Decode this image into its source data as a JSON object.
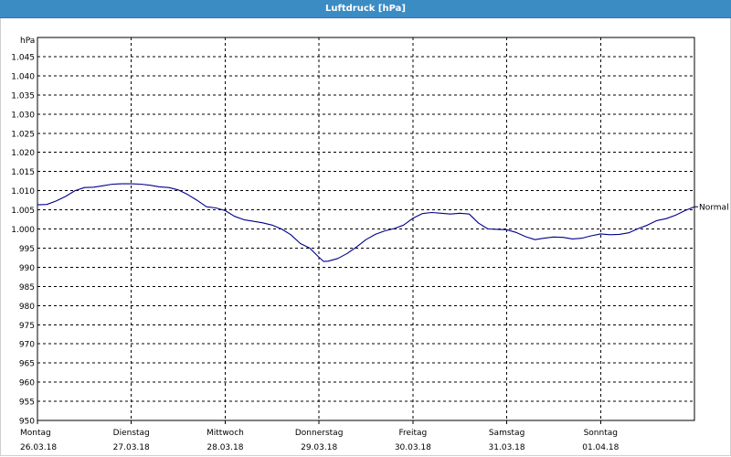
{
  "window": {
    "title": "Luftdruck [hPa]"
  },
  "chart_data": {
    "type": "line",
    "title": "Luftdruck [hPa]",
    "ylabel": "hPa",
    "ylim": [
      950,
      1050
    ],
    "yticks": [
      "1.045",
      "1.040",
      "1.035",
      "1.030",
      "1.025",
      "1.020",
      "1.015",
      "1.010",
      "1.005",
      "1.000",
      "995",
      "990",
      "985",
      "980",
      "975",
      "970",
      "965",
      "960",
      "955",
      "950"
    ],
    "ytick_values": [
      1045,
      1040,
      1035,
      1030,
      1025,
      1020,
      1015,
      1010,
      1005,
      1000,
      995,
      990,
      985,
      980,
      975,
      970,
      965,
      960,
      955,
      950
    ],
    "xlim": [
      0,
      7
    ],
    "x_ticks": [
      {
        "day": "Montag",
        "date": "26.03.18"
      },
      {
        "day": "Dienstag",
        "date": "27.03.18"
      },
      {
        "day": "Mittwoch",
        "date": "28.03.18"
      },
      {
        "day": "Donnerstag",
        "date": "29.03.18"
      },
      {
        "day": "Freitag",
        "date": "30.03.18"
      },
      {
        "day": "Samstag",
        "date": "31.03.18"
      },
      {
        "day": "Sonntag",
        "date": "01.04.18"
      }
    ],
    "grid": true,
    "reference_line": {
      "label": "Normal",
      "value": 1005.8
    },
    "series": [
      {
        "color": "#00008b",
        "points": [
          [
            0.0,
            1006.3
          ],
          [
            0.1,
            1006.4
          ],
          [
            0.2,
            1007.3
          ],
          [
            0.3,
            1008.5
          ],
          [
            0.4,
            1010.0
          ],
          [
            0.5,
            1010.8
          ],
          [
            0.6,
            1010.9
          ],
          [
            0.7,
            1011.3
          ],
          [
            0.8,
            1011.7
          ],
          [
            0.9,
            1011.8
          ],
          [
            1.0,
            1011.8
          ],
          [
            1.1,
            1011.7
          ],
          [
            1.2,
            1011.4
          ],
          [
            1.3,
            1011.0
          ],
          [
            1.4,
            1010.8
          ],
          [
            1.5,
            1010.2
          ],
          [
            1.6,
            1009.0
          ],
          [
            1.7,
            1007.5
          ],
          [
            1.8,
            1005.8
          ],
          [
            1.9,
            1005.5
          ],
          [
            2.0,
            1004.8
          ],
          [
            2.1,
            1003.3
          ],
          [
            2.2,
            1002.4
          ],
          [
            2.3,
            1002.0
          ],
          [
            2.4,
            1001.6
          ],
          [
            2.5,
            1001.0
          ],
          [
            2.6,
            1000.0
          ],
          [
            2.7,
            998.5
          ],
          [
            2.8,
            996.2
          ],
          [
            2.9,
            995.0
          ],
          [
            3.0,
            992.6
          ],
          [
            3.05,
            991.5
          ],
          [
            3.1,
            991.6
          ],
          [
            3.2,
            992.3
          ],
          [
            3.3,
            993.6
          ],
          [
            3.4,
            995.3
          ],
          [
            3.5,
            997.2
          ],
          [
            3.6,
            998.6
          ],
          [
            3.7,
            999.5
          ],
          [
            3.8,
            1000.1
          ],
          [
            3.9,
            1001.0
          ],
          [
            4.0,
            1002.8
          ],
          [
            4.1,
            1004.0
          ],
          [
            4.2,
            1004.3
          ],
          [
            4.3,
            1004.1
          ],
          [
            4.4,
            1003.9
          ],
          [
            4.5,
            1004.1
          ],
          [
            4.6,
            1003.9
          ],
          [
            4.7,
            1001.5
          ],
          [
            4.8,
            1000.0
          ],
          [
            4.9,
            999.9
          ],
          [
            5.0,
            999.8
          ],
          [
            5.1,
            999.1
          ],
          [
            5.2,
            998.0
          ],
          [
            5.3,
            997.2
          ],
          [
            5.4,
            997.6
          ],
          [
            5.5,
            997.9
          ],
          [
            5.6,
            997.8
          ],
          [
            5.7,
            997.4
          ],
          [
            5.8,
            997.6
          ],
          [
            5.9,
            998.2
          ],
          [
            6.0,
            998.7
          ],
          [
            6.1,
            998.5
          ],
          [
            6.2,
            998.6
          ],
          [
            6.3,
            999.0
          ],
          [
            6.4,
            1000.1
          ],
          [
            6.5,
            1001.0
          ],
          [
            6.6,
            1002.2
          ],
          [
            6.7,
            1002.7
          ],
          [
            6.8,
            1003.6
          ],
          [
            6.9,
            1004.8
          ],
          [
            7.0,
            1005.8
          ]
        ]
      }
    ]
  }
}
